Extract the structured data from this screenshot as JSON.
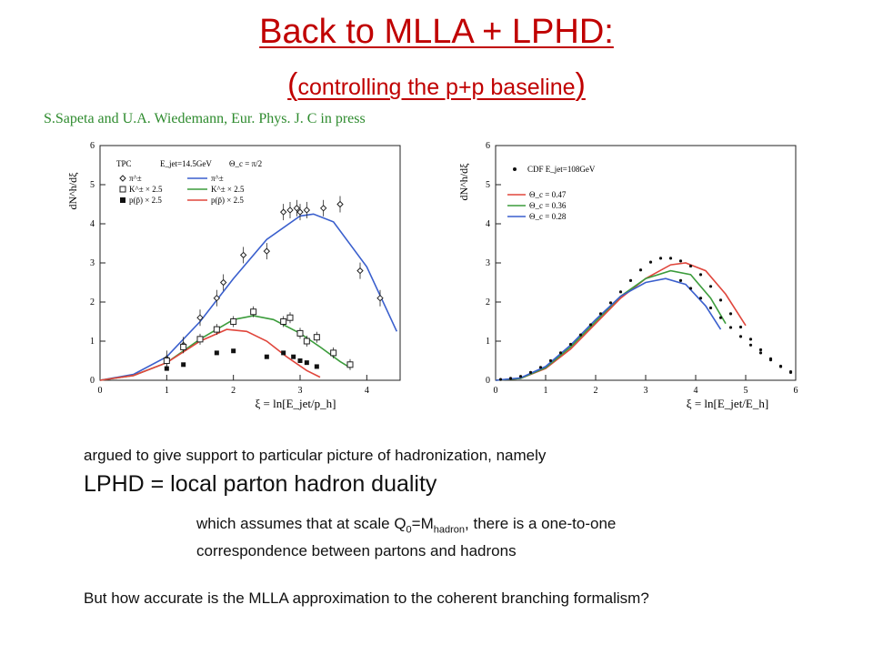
{
  "slide": {
    "title": "Back to MLLA + LPHD:",
    "subtitle_open": "(",
    "subtitle": "controlling the p+p baseline",
    "subtitle_close": ")",
    "citation": "S.Sapeta and U.A. Wiedemann, Eur. Phys. J. C in press",
    "para1": "argued to give support to particular picture of hadronization, namely",
    "para2": "LPHD = local parton hadron duality",
    "para3_a": "which assumes that at scale Q",
    "para3_sub0": "0",
    "para3_b": "=M",
    "para3_subhadron": "hadron",
    "para3_c": ", there is a one-to-one",
    "para3_line2": "correspondence between partons and hadrons",
    "para4": "But how accurate is the MLLA approximation to the coherent branching formalism?"
  },
  "colors": {
    "title": "#c00000",
    "citation": "#2e8b2e",
    "blue": "#3a5fcd",
    "green": "#3c9c3c",
    "red": "#e0463c"
  },
  "chart_data": [
    {
      "type": "line",
      "title": "",
      "xlabel": "ξ = ln[E_jet/p_h]",
      "ylabel": "dN^h/dξ",
      "xlim": [
        0,
        4.5
      ],
      "ylim": [
        0,
        6
      ],
      "xticks": [
        0,
        1,
        2,
        3,
        4
      ],
      "yticks": [
        0,
        1,
        2,
        3,
        4,
        5,
        6
      ],
      "legend_placement": "top-left",
      "legend_header": [
        "TPC",
        "E_jet=14.5GeV",
        "Θ_c = π/2"
      ],
      "legend_data": [
        "π^±",
        "K^± × 2.5",
        "p(p̄) × 2.5"
      ],
      "legend_curves": [
        "π^±",
        "K^± × 2.5",
        "p(p̄) × 2.5"
      ],
      "series": [
        {
          "name": "π^±",
          "kind": "curve",
          "color": "#3a5fcd",
          "x": [
            0,
            0.5,
            1,
            1.5,
            2,
            2.5,
            3,
            3.2,
            3.5,
            4,
            4.3,
            4.45
          ],
          "y": [
            0,
            0.15,
            0.6,
            1.5,
            2.6,
            3.6,
            4.2,
            4.25,
            4.05,
            2.9,
            1.8,
            1.25
          ]
        },
        {
          "name": "K^± × 2.5",
          "kind": "curve",
          "color": "#3c9c3c",
          "x": [
            0,
            0.5,
            1,
            1.5,
            2,
            2.3,
            2.6,
            3,
            3.3,
            3.6,
            3.75
          ],
          "y": [
            0,
            0.12,
            0.45,
            1.05,
            1.55,
            1.65,
            1.55,
            1.2,
            0.85,
            0.48,
            0.32
          ]
        },
        {
          "name": "p(p̄) × 2.5",
          "kind": "curve",
          "color": "#e0463c",
          "x": [
            0,
            0.5,
            1,
            1.5,
            1.9,
            2.2,
            2.5,
            2.8,
            3.1,
            3.3
          ],
          "y": [
            0,
            0.12,
            0.45,
            1.0,
            1.3,
            1.25,
            1.0,
            0.6,
            0.25,
            0.08
          ]
        },
        {
          "name": "π^± data",
          "kind": "diamond",
          "x": [
            1.0,
            1.25,
            1.5,
            1.75,
            1.85,
            2.15,
            2.5,
            2.75,
            2.85,
            2.95,
            3.0,
            3.1,
            3.35,
            3.6,
            3.9,
            4.2
          ],
          "y": [
            0.55,
            0.9,
            1.6,
            2.1,
            2.5,
            3.2,
            3.3,
            4.3,
            4.35,
            4.4,
            4.3,
            4.35,
            4.4,
            4.5,
            2.8,
            2.1
          ]
        },
        {
          "name": "K^± × 2.5 data",
          "kind": "square",
          "x": [
            1.0,
            1.25,
            1.5,
            1.75,
            2.0,
            2.3,
            2.75,
            2.85,
            3.0,
            3.1,
            3.25,
            3.5,
            3.75
          ],
          "y": [
            0.5,
            0.85,
            1.05,
            1.3,
            1.5,
            1.75,
            1.5,
            1.6,
            1.2,
            1.0,
            1.1,
            0.7,
            0.4
          ]
        },
        {
          "name": "p(p̄) × 2.5 data",
          "kind": "filled",
          "x": [
            1.0,
            1.25,
            1.75,
            2.0,
            2.5,
            2.75,
            2.9,
            3.0,
            3.1,
            3.25
          ],
          "y": [
            0.3,
            0.4,
            0.7,
            0.75,
            0.6,
            0.7,
            0.6,
            0.5,
            0.45,
            0.35
          ]
        }
      ]
    },
    {
      "type": "line",
      "title": "",
      "xlabel": "ξ = ln[E_jet/E_h]",
      "ylabel": "dN^h/dξ",
      "xlim": [
        0,
        6
      ],
      "ylim": [
        0,
        6
      ],
      "xticks": [
        0,
        1,
        2,
        3,
        4,
        5,
        6
      ],
      "yticks": [
        0,
        1,
        2,
        3,
        4,
        5,
        6
      ],
      "legend_placement": "top-left",
      "legend_data": [
        "CDF E_jet=108GeV"
      ],
      "series": [
        {
          "name": "Θ_c = 0.47",
          "kind": "curve",
          "color": "#e0463c",
          "x": [
            0,
            0.5,
            1,
            1.5,
            2,
            2.5,
            3,
            3.5,
            3.8,
            4.2,
            4.6,
            5.0
          ],
          "y": [
            0,
            0.05,
            0.3,
            0.8,
            1.45,
            2.1,
            2.6,
            2.95,
            3.0,
            2.8,
            2.2,
            1.4
          ]
        },
        {
          "name": "Θ_c = 0.36",
          "kind": "curve",
          "color": "#3c9c3c",
          "x": [
            0,
            0.5,
            1,
            1.5,
            2,
            2.5,
            3,
            3.5,
            3.9,
            4.3,
            4.6
          ],
          "y": [
            0,
            0.05,
            0.32,
            0.85,
            1.5,
            2.15,
            2.6,
            2.8,
            2.7,
            2.1,
            1.45
          ]
        },
        {
          "name": "Θ_c = 0.28",
          "kind": "curve",
          "color": "#3a5fcd",
          "x": [
            0,
            0.5,
            1,
            1.5,
            2,
            2.5,
            3,
            3.4,
            3.8,
            4.2,
            4.5
          ],
          "y": [
            0,
            0.06,
            0.35,
            0.9,
            1.55,
            2.15,
            2.5,
            2.6,
            2.45,
            1.9,
            1.3
          ]
        },
        {
          "name": "CDF data upper",
          "kind": "dots",
          "x": [
            0.1,
            0.3,
            0.5,
            0.7,
            0.9,
            1.1,
            1.3,
            1.5,
            1.7,
            1.9,
            2.1,
            2.3,
            2.5,
            2.7,
            2.9,
            3.1,
            3.3,
            3.5,
            3.7,
            3.9,
            4.1,
            4.3,
            4.5,
            4.7,
            4.9,
            5.1,
            5.3,
            5.5,
            5.7,
            5.9
          ],
          "y": [
            0.02,
            0.05,
            0.1,
            0.2,
            0.33,
            0.5,
            0.7,
            0.92,
            1.16,
            1.42,
            1.7,
            1.98,
            2.26,
            2.55,
            2.82,
            3.02,
            3.12,
            3.12,
            3.05,
            2.92,
            2.7,
            2.4,
            2.05,
            1.7,
            1.36,
            1.05,
            0.78,
            0.55,
            0.35,
            0.2
          ]
        },
        {
          "name": "CDF data lower",
          "kind": "dots",
          "x": [
            3.7,
            3.9,
            4.1,
            4.3,
            4.5,
            4.7,
            4.9,
            5.1,
            5.3,
            5.5,
            5.7,
            5.9
          ],
          "y": [
            2.55,
            2.35,
            2.1,
            1.85,
            1.6,
            1.35,
            1.12,
            0.9,
            0.7,
            0.52,
            0.36,
            0.22
          ]
        }
      ],
      "legend_curves": [
        "Θ_c = 0.47",
        "Θ_c = 0.36",
        "Θ_c = 0.28"
      ]
    }
  ]
}
